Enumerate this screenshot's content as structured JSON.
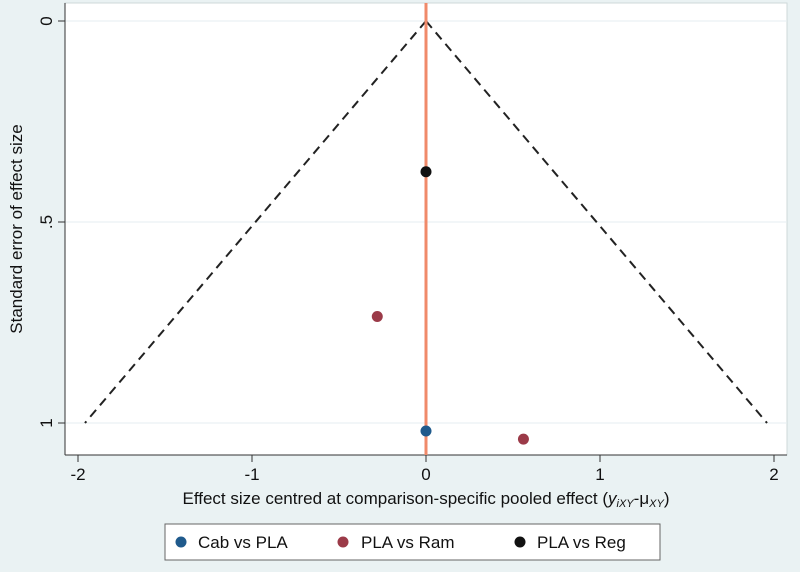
{
  "chart_data": {
    "type": "scatter",
    "title": "",
    "xlabel_main": "Effect size centred at comparison-specific pooled effect (",
    "xlabel_math_y": "y",
    "xlabel_math_y_sub": "iXY",
    "xlabel_math_dash": "-",
    "xlabel_math_mu": "μ",
    "xlabel_math_mu_sub": "XY",
    "xlabel_close": ")",
    "ylabel": "Standard error of effect size",
    "xlim": [
      -2.05,
      2.05
    ],
    "ylim": [
      0,
      1.07
    ],
    "y_reversed": true,
    "x_ticks": [
      {
        "value": -2,
        "label": "-2"
      },
      {
        "value": -1,
        "label": "-1"
      },
      {
        "value": 0,
        "label": "0"
      },
      {
        "value": 1,
        "label": "1"
      },
      {
        "value": 2,
        "label": "2"
      }
    ],
    "y_ticks": [
      {
        "value": 0,
        "label": "0"
      },
      {
        "value": 0.5,
        "label": ".5"
      },
      {
        "value": 1,
        "label": "1"
      }
    ],
    "grid": true,
    "reference_line_x": 0,
    "funnel": {
      "apex": [
        0,
        0
      ],
      "left_end": [
        -1.96,
        1
      ],
      "right_end": [
        1.96,
        1
      ]
    },
    "series": [
      {
        "name": "Cab vs PLA",
        "color": "#1f5a8c",
        "points": [
          {
            "x": 0.0,
            "y": 1.02
          }
        ]
      },
      {
        "name": "PLA vs Ram",
        "color": "#9b3a48",
        "points": [
          {
            "x": -0.28,
            "y": 0.735
          },
          {
            "x": 0.56,
            "y": 1.04
          }
        ]
      },
      {
        "name": "PLA vs Reg",
        "color": "#111111",
        "points": [
          {
            "x": 0.0,
            "y": 0.375
          }
        ]
      }
    ],
    "legend_position": "bottom",
    "colors": {
      "plot_background": "#ffffff",
      "outer_background": "#eaf2f3",
      "reference_line": "#f08a6a",
      "funnel_line": "#222222",
      "grid": "#e6eef0"
    }
  }
}
